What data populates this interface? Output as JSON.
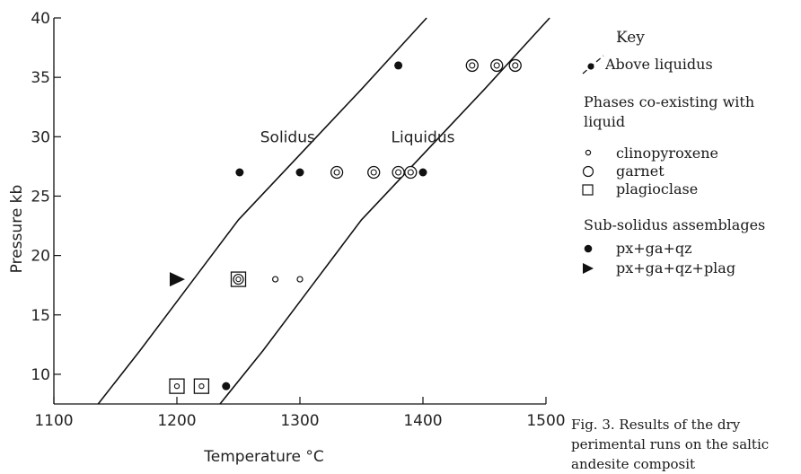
{
  "chart_data": {
    "type": "scatter",
    "xlabel": "Temperature °C",
    "ylabel": "Pressure kb",
    "xlim": [
      1100,
      1500
    ],
    "ylim": [
      7.5,
      40
    ],
    "xticks": [
      1100,
      1200,
      1300,
      1400,
      1500
    ],
    "yticks": [
      10,
      15,
      20,
      25,
      30,
      35,
      40
    ],
    "grid": false,
    "lines": [
      {
        "name": "Solidus",
        "points": [
          [
            1136,
            7.5
          ],
          [
            1170,
            12
          ],
          [
            1210,
            17.5
          ],
          [
            1250,
            23
          ],
          [
            1300,
            28.5
          ],
          [
            1350,
            34
          ],
          [
            1403,
            40
          ]
        ]
      },
      {
        "name": "Liquidus",
        "points": [
          [
            1235,
            7.5
          ],
          [
            1270,
            12
          ],
          [
            1310,
            17.5
          ],
          [
            1350,
            23
          ],
          [
            1400,
            28.5
          ],
          [
            1450,
            34
          ],
          [
            1503,
            40
          ]
        ]
      }
    ],
    "line_labels": [
      {
        "text": "Solidus",
        "x": 1290,
        "y": 30
      },
      {
        "text": "Liquidus",
        "x": 1400,
        "y": 30
      }
    ],
    "points": [
      {
        "kind": "subsolidus_px_ga_qz",
        "x": 1251,
        "y": 27
      },
      {
        "kind": "subsolidus_px_ga_qz",
        "x": 1300,
        "y": 27
      },
      {
        "kind": "subsolidus_px_ga_qz",
        "x": 1380,
        "y": 36
      },
      {
        "kind": "subsolidus_px_ga_qz",
        "x": 1400,
        "y": 27
      },
      {
        "kind": "subsolidus_px_ga_qz",
        "x": 1240,
        "y": 9
      },
      {
        "kind": "subsolidus_px_ga_qz_plag",
        "x": 1200,
        "y": 18
      },
      {
        "kind": "garnet",
        "x": 1330,
        "y": 27
      },
      {
        "kind": "garnet",
        "x": 1360,
        "y": 27
      },
      {
        "kind": "garnet",
        "x": 1380,
        "y": 27
      },
      {
        "kind": "garnet",
        "x": 1390,
        "y": 27
      },
      {
        "kind": "garnet",
        "x": 1440,
        "y": 36
      },
      {
        "kind": "garnet",
        "x": 1460,
        "y": 36
      },
      {
        "kind": "garnet",
        "x": 1475,
        "y": 36
      },
      {
        "kind": "garnet_plagioclase",
        "x": 1250,
        "y": 18
      },
      {
        "kind": "clinopyroxene",
        "x": 1280,
        "y": 18
      },
      {
        "kind": "clinopyroxene",
        "x": 1300,
        "y": 18
      },
      {
        "kind": "clinopyroxene_plagioclase",
        "x": 1200,
        "y": 9
      },
      {
        "kind": "clinopyroxene_plagioclase",
        "x": 1220,
        "y": 9
      }
    ]
  },
  "key": {
    "title": "Key",
    "above_liquidus": "Above liquidus",
    "phases_heading": "Phases co-existing with liquid",
    "clinopyroxene": "clinopyroxene",
    "garnet": "garnet",
    "plagioclase": "plagioclase",
    "subsolidus_heading": "Sub-solidus assemblages",
    "px_ga_qz": "px+ga+qz",
    "px_ga_qz_plag": "px+ga+qz+plag"
  },
  "caption": "Fig. 3. Results of the dry perimental runs on the saltic andesite composit"
}
